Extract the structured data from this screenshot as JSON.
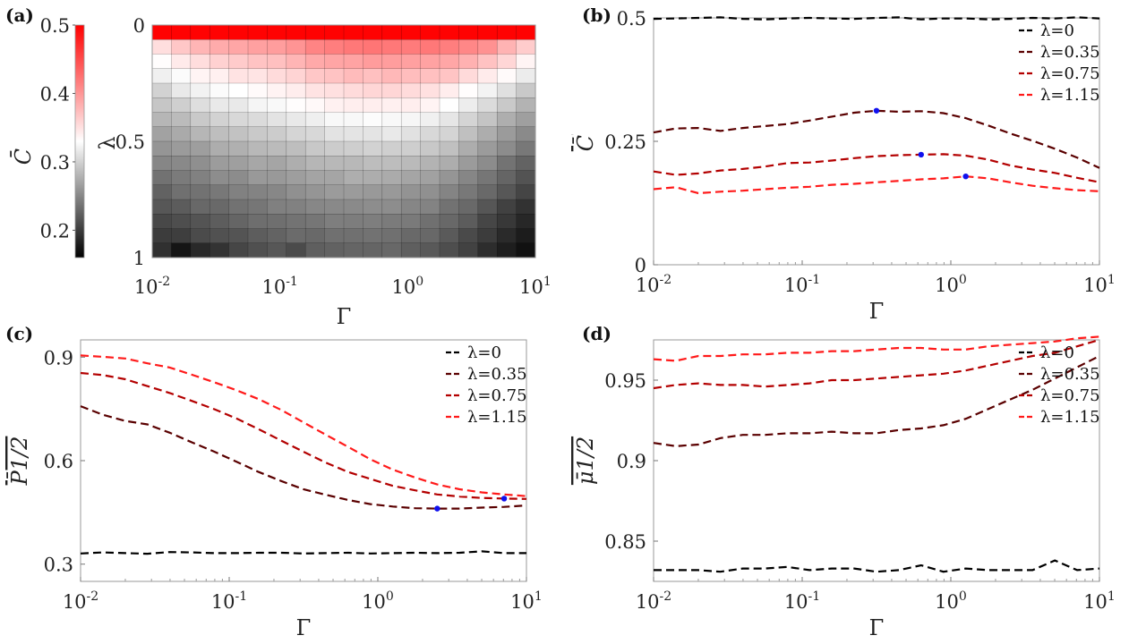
{
  "chart_data": [
    {
      "panel": "(a)",
      "type": "heatmap",
      "xlabel": "Γ",
      "ylabel": "λ",
      "colorbar_label": "C̄",
      "xscale": "log",
      "xlim": [
        0.01,
        10
      ],
      "ylim": [
        0,
        1
      ],
      "y_reversed": true,
      "xticks": [
        {
          "base": "10",
          "exp": "-2"
        },
        {
          "base": "10",
          "exp": "-1"
        },
        {
          "base": "10",
          "exp": "0"
        },
        {
          "base": "10",
          "exp": "1"
        }
      ],
      "yticks": [
        "0",
        "0.5",
        "1"
      ],
      "colorbar_range": [
        0.16,
        0.5
      ],
      "colorbar_ticks": [
        "0.5",
        "0.4",
        "0.3",
        "0.2"
      ],
      "colors": {
        "low": "#000000",
        "mid": "#ffffff",
        "high": "#ff0000"
      },
      "grid_size": [
        20,
        16
      ],
      "cells": [
        [
          0.499,
          0.499,
          0.499,
          0.499,
          0.499,
          0.499,
          0.499,
          0.499,
          0.499,
          0.499,
          0.499,
          0.499,
          0.499,
          0.499,
          0.499,
          0.499,
          0.499,
          0.499,
          0.499,
          0.499
        ],
        [
          0.352,
          0.367,
          0.379,
          0.386,
          0.389,
          0.393,
          0.395,
          0.401,
          0.412,
          0.416,
          0.42,
          0.422,
          0.42,
          0.418,
          0.42,
          0.416,
          0.41,
          0.403,
          0.381,
          0.364
        ],
        [
          0.331,
          0.344,
          0.353,
          0.361,
          0.365,
          0.37,
          0.372,
          0.379,
          0.387,
          0.39,
          0.391,
          0.396,
          0.395,
          0.393,
          0.392,
          0.389,
          0.382,
          0.371,
          0.357,
          0.337
        ],
        [
          0.32,
          0.327,
          0.337,
          0.34,
          0.349,
          0.348,
          0.354,
          0.359,
          0.367,
          0.37,
          0.375,
          0.372,
          0.377,
          0.374,
          0.372,
          0.369,
          0.355,
          0.343,
          0.333,
          0.317
        ],
        [
          0.3,
          0.315,
          0.321,
          0.327,
          0.33,
          0.333,
          0.338,
          0.342,
          0.349,
          0.351,
          0.354,
          0.357,
          0.357,
          0.354,
          0.351,
          0.342,
          0.331,
          0.322,
          0.309,
          0.294
        ],
        [
          0.292,
          0.298,
          0.308,
          0.315,
          0.315,
          0.323,
          0.326,
          0.331,
          0.334,
          0.339,
          0.341,
          0.341,
          0.34,
          0.341,
          0.337,
          0.329,
          0.318,
          0.306,
          0.294,
          0.279
        ],
        [
          0.281,
          0.285,
          0.294,
          0.3,
          0.304,
          0.306,
          0.311,
          0.315,
          0.319,
          0.325,
          0.325,
          0.328,
          0.325,
          0.324,
          0.32,
          0.313,
          0.301,
          0.291,
          0.276,
          0.266
        ],
        [
          0.268,
          0.273,
          0.281,
          0.287,
          0.289,
          0.294,
          0.296,
          0.302,
          0.304,
          0.311,
          0.312,
          0.312,
          0.315,
          0.31,
          0.304,
          0.301,
          0.288,
          0.275,
          0.263,
          0.252
        ],
        [
          0.259,
          0.263,
          0.265,
          0.275,
          0.277,
          0.283,
          0.285,
          0.287,
          0.293,
          0.296,
          0.297,
          0.3,
          0.298,
          0.297,
          0.293,
          0.288,
          0.275,
          0.263,
          0.253,
          0.24
        ],
        [
          0.249,
          0.251,
          0.255,
          0.264,
          0.266,
          0.271,
          0.27,
          0.276,
          0.281,
          0.283,
          0.283,
          0.286,
          0.286,
          0.284,
          0.279,
          0.275,
          0.263,
          0.253,
          0.237,
          0.226
        ],
        [
          0.236,
          0.242,
          0.246,
          0.254,
          0.253,
          0.262,
          0.262,
          0.265,
          0.269,
          0.27,
          0.276,
          0.275,
          0.274,
          0.27,
          0.267,
          0.259,
          0.249,
          0.239,
          0.227,
          0.215
        ],
        [
          0.225,
          0.235,
          0.236,
          0.24,
          0.246,
          0.247,
          0.25,
          0.256,
          0.259,
          0.263,
          0.263,
          0.262,
          0.262,
          0.258,
          0.256,
          0.248,
          0.24,
          0.23,
          0.218,
          0.206
        ],
        [
          0.218,
          0.221,
          0.229,
          0.23,
          0.236,
          0.239,
          0.245,
          0.246,
          0.25,
          0.251,
          0.252,
          0.254,
          0.254,
          0.249,
          0.247,
          0.236,
          0.23,
          0.217,
          0.203,
          0.193
        ],
        [
          0.208,
          0.212,
          0.216,
          0.222,
          0.227,
          0.233,
          0.234,
          0.237,
          0.239,
          0.244,
          0.243,
          0.244,
          0.242,
          0.241,
          0.235,
          0.229,
          0.221,
          0.207,
          0.197,
          0.186
        ],
        [
          0.2,
          0.201,
          0.21,
          0.214,
          0.216,
          0.222,
          0.226,
          0.231,
          0.23,
          0.235,
          0.235,
          0.236,
          0.235,
          0.23,
          0.229,
          0.22,
          0.209,
          0.2,
          0.188,
          0.179
        ],
        [
          0.192,
          0.174,
          0.187,
          0.194,
          0.207,
          0.213,
          0.218,
          0.21,
          0.223,
          0.225,
          0.227,
          0.227,
          0.229,
          0.223,
          0.219,
          0.212,
          0.204,
          0.19,
          0.18,
          0.171
        ]
      ]
    },
    {
      "panel": "(b)",
      "type": "line",
      "xlabel": "Γ",
      "ylabel": "C̄",
      "xscale": "log",
      "xlim": [
        0.01,
        10
      ],
      "ylim": [
        0,
        0.5
      ],
      "xticks": [
        {
          "base": "10",
          "exp": "-2"
        },
        {
          "base": "10",
          "exp": "-1"
        },
        {
          "base": "10",
          "exp": "0"
        },
        {
          "base": "10",
          "exp": "1"
        }
      ],
      "yticks": [
        "0.5",
        "0.25",
        "0"
      ],
      "legend_position": "top-right",
      "x": [
        0.01,
        0.0141,
        0.02,
        0.0282,
        0.0398,
        0.0562,
        0.0794,
        0.112,
        0.158,
        0.224,
        0.316,
        0.447,
        0.631,
        0.891,
        1.26,
        1.78,
        2.51,
        3.55,
        5.01,
        7.08,
        10
      ],
      "series": [
        {
          "name": "λ=0",
          "color": "#000000",
          "values": [
            0.498,
            0.499,
            0.5,
            0.501,
            0.498,
            0.497,
            0.499,
            0.5,
            0.499,
            0.498,
            0.5,
            0.501,
            0.497,
            0.499,
            0.499,
            0.497,
            0.498,
            0.5,
            0.499,
            0.501,
            0.499
          ]
        },
        {
          "name": "λ=0.35",
          "color": "#5a0000",
          "values": [
            0.268,
            0.276,
            0.277,
            0.271,
            0.277,
            0.281,
            0.285,
            0.292,
            0.3,
            0.308,
            0.312,
            0.31,
            0.311,
            0.307,
            0.297,
            0.282,
            0.266,
            0.251,
            0.235,
            0.217,
            0.196
          ]
        },
        {
          "name": "λ=0.75",
          "color": "#b30000",
          "values": [
            0.189,
            0.182,
            0.185,
            0.191,
            0.194,
            0.199,
            0.206,
            0.207,
            0.211,
            0.216,
            0.22,
            0.222,
            0.223,
            0.224,
            0.221,
            0.213,
            0.201,
            0.193,
            0.186,
            0.176,
            0.167
          ]
        },
        {
          "name": "λ=1.15",
          "color": "#ff1a1a",
          "values": [
            0.153,
            0.157,
            0.145,
            0.148,
            0.15,
            0.153,
            0.156,
            0.158,
            0.162,
            0.164,
            0.167,
            0.17,
            0.173,
            0.175,
            0.179,
            0.175,
            0.167,
            0.16,
            0.155,
            0.151,
            0.149
          ]
        }
      ],
      "markers": [
        {
          "x": 0.316,
          "y": 0.312,
          "color": "#1010ee"
        },
        {
          "x": 0.631,
          "y": 0.223,
          "color": "#1010ee"
        },
        {
          "x": 1.26,
          "y": 0.179,
          "color": "#1010ee"
        }
      ]
    },
    {
      "panel": "(c)",
      "type": "line",
      "xlabel": "Γ",
      "ylabel": "P̄1/2",
      "xscale": "log",
      "xlim": [
        0.01,
        10
      ],
      "ylim": [
        0.25,
        0.95
      ],
      "xticks": [
        {
          "base": "10",
          "exp": "-2"
        },
        {
          "base": "10",
          "exp": "-1"
        },
        {
          "base": "10",
          "exp": "0"
        },
        {
          "base": "10",
          "exp": "1"
        }
      ],
      "yticks": [
        "0.9",
        "0.6",
        "0.3"
      ],
      "legend_position": "top-right",
      "x": [
        0.01,
        0.0141,
        0.02,
        0.0282,
        0.0398,
        0.0562,
        0.0794,
        0.112,
        0.158,
        0.224,
        0.316,
        0.447,
        0.631,
        0.891,
        1.26,
        1.78,
        2.51,
        3.55,
        5.01,
        7.08,
        10
      ],
      "series": [
        {
          "name": "λ=0",
          "color": "#000000",
          "values": [
            0.331,
            0.334,
            0.332,
            0.33,
            0.335,
            0.334,
            0.332,
            0.332,
            0.333,
            0.333,
            0.331,
            0.332,
            0.333,
            0.331,
            0.332,
            0.333,
            0.332,
            0.333,
            0.337,
            0.332,
            0.332
          ]
        },
        {
          "name": "λ=0.35",
          "color": "#5a0000",
          "values": [
            0.758,
            0.733,
            0.715,
            0.705,
            0.681,
            0.653,
            0.626,
            0.597,
            0.567,
            0.541,
            0.517,
            0.501,
            0.486,
            0.474,
            0.467,
            0.462,
            0.461,
            0.461,
            0.464,
            0.466,
            0.47
          ]
        },
        {
          "name": "λ=0.75",
          "color": "#b30000",
          "values": [
            0.854,
            0.848,
            0.836,
            0.816,
            0.796,
            0.773,
            0.749,
            0.722,
            0.691,
            0.658,
            0.626,
            0.594,
            0.567,
            0.547,
            0.527,
            0.514,
            0.502,
            0.496,
            0.492,
            0.49,
            0.489
          ]
        },
        {
          "name": "λ=1.15",
          "color": "#ff1a1a",
          "values": [
            0.905,
            0.901,
            0.896,
            0.882,
            0.87,
            0.849,
            0.827,
            0.804,
            0.778,
            0.747,
            0.711,
            0.675,
            0.64,
            0.604,
            0.574,
            0.551,
            0.531,
            0.517,
            0.508,
            0.502,
            0.497
          ]
        }
      ],
      "markers": [
        {
          "x": 2.51,
          "y": 0.461,
          "color": "#1010ee"
        },
        {
          "x": 7.08,
          "y": 0.49,
          "color": "#1010ee"
        }
      ]
    },
    {
      "panel": "(d)",
      "type": "line",
      "xlabel": "Γ",
      "ylabel": "μ̄1/2",
      "xscale": "log",
      "xlim": [
        0.01,
        10
      ],
      "ylim": [
        0.825,
        0.975
      ],
      "xticks": [
        {
          "base": "10",
          "exp": "-2"
        },
        {
          "base": "10",
          "exp": "-1"
        },
        {
          "base": "10",
          "exp": "0"
        },
        {
          "base": "10",
          "exp": "1"
        }
      ],
      "yticks": [
        "0.95",
        "0.9",
        "0.85"
      ],
      "legend_position": "top-right",
      "x": [
        0.01,
        0.0141,
        0.02,
        0.0282,
        0.0398,
        0.0562,
        0.0794,
        0.112,
        0.158,
        0.224,
        0.316,
        0.447,
        0.631,
        0.891,
        1.26,
        1.78,
        2.51,
        3.55,
        5.01,
        7.08,
        10
      ],
      "series": [
        {
          "name": "λ=0",
          "color": "#000000",
          "values": [
            0.832,
            0.832,
            0.832,
            0.831,
            0.833,
            0.833,
            0.834,
            0.832,
            0.833,
            0.833,
            0.831,
            0.832,
            0.835,
            0.831,
            0.833,
            0.832,
            0.832,
            0.832,
            0.838,
            0.832,
            0.833
          ]
        },
        {
          "name": "λ=0.35",
          "color": "#5a0000",
          "values": [
            0.911,
            0.909,
            0.91,
            0.914,
            0.916,
            0.916,
            0.917,
            0.917,
            0.918,
            0.917,
            0.917,
            0.919,
            0.92,
            0.922,
            0.926,
            0.932,
            0.938,
            0.944,
            0.951,
            0.958,
            0.965
          ]
        },
        {
          "name": "λ=0.75",
          "color": "#b30000",
          "values": [
            0.945,
            0.947,
            0.948,
            0.947,
            0.947,
            0.946,
            0.947,
            0.948,
            0.95,
            0.95,
            0.951,
            0.952,
            0.953,
            0.954,
            0.956,
            0.959,
            0.962,
            0.965,
            0.967,
            0.971,
            0.975
          ]
        },
        {
          "name": "λ=1.15",
          "color": "#ff1a1a",
          "values": [
            0.963,
            0.962,
            0.965,
            0.965,
            0.966,
            0.966,
            0.967,
            0.967,
            0.968,
            0.968,
            0.969,
            0.97,
            0.97,
            0.969,
            0.969,
            0.971,
            0.972,
            0.973,
            0.974,
            0.976,
            0.977
          ]
        }
      ],
      "markers": []
    }
  ]
}
